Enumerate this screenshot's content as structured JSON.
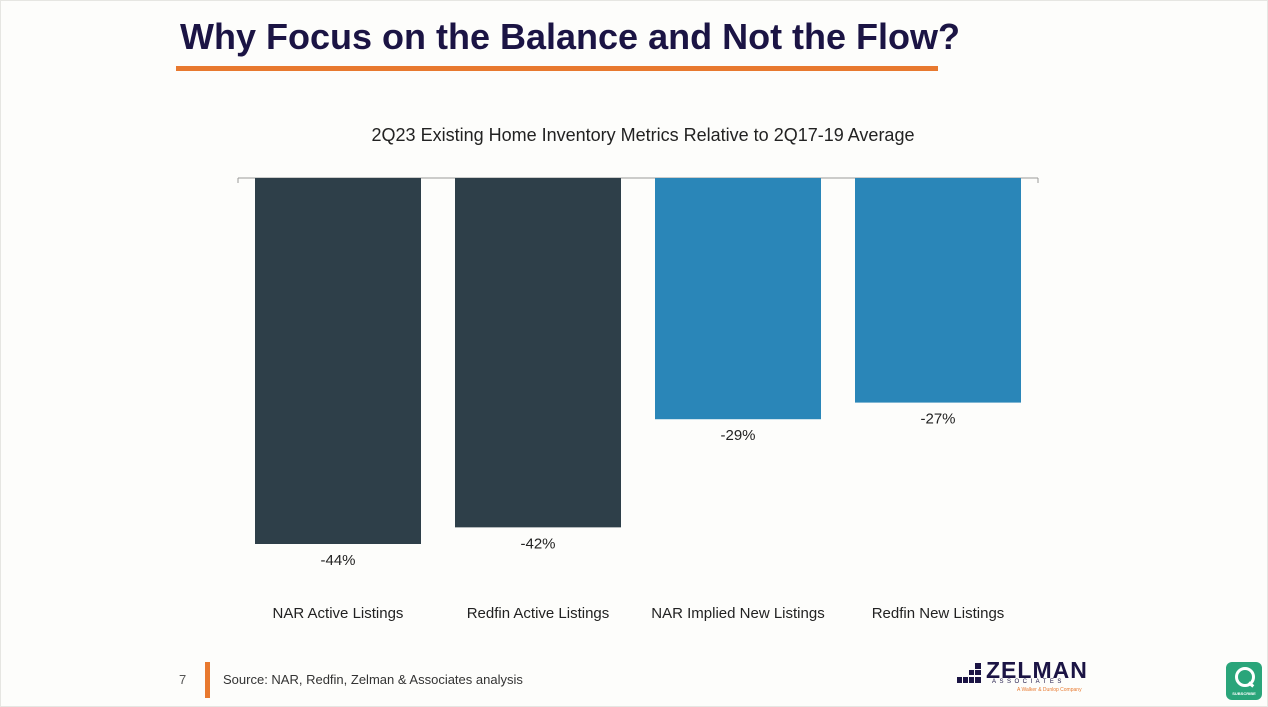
{
  "slide": {
    "title": "Why Focus on the Balance and Not the Flow?",
    "page_number": "7",
    "source": "Source: NAR, Redfin, Zelman & Associates analysis"
  },
  "logo": {
    "name": "ZELMAN",
    "sub": "ASSOCIATES",
    "tagline": "A Walker & Dunlop Company"
  },
  "badge": {
    "label": "SUBSCRIBE"
  },
  "colors": {
    "accent": "#e8792f",
    "title": "#1b1444",
    "dark_bar": "#2e3f49",
    "blue_bar": "#2a86b8"
  },
  "chart_data": {
    "type": "bar",
    "title": "2Q23 Existing Home Inventory Metrics Relative to 2Q17-19 Average",
    "categories": [
      "NAR Active Listings",
      "Redfin Active Listings",
      "NAR Implied New Listings",
      "Redfin New Listings"
    ],
    "values": [
      -44,
      -42,
      -29,
      -27
    ],
    "value_labels": [
      "-44%",
      "-42%",
      "-29%",
      "-27%"
    ],
    "bar_colors": [
      "#2e3f49",
      "#2e3f49",
      "#2a86b8",
      "#2a86b8"
    ],
    "ylim": [
      -44,
      0
    ],
    "xlabel": "",
    "ylabel": "",
    "grid": false,
    "legend": "none"
  }
}
